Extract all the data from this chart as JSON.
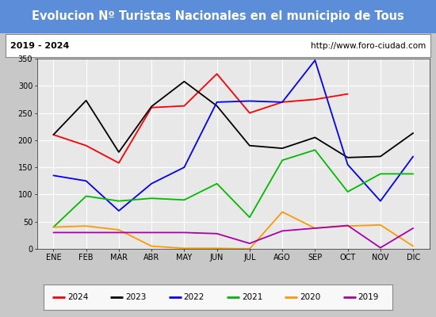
{
  "title": "Evolucion Nº Turistas Nacionales en el municipio de Tous",
  "subtitle_left": "2019 - 2024",
  "subtitle_right": "http://www.foro-ciudad.com",
  "x_labels": [
    "ENE",
    "FEB",
    "MAR",
    "ABR",
    "MAY",
    "JUN",
    "JUL",
    "AGO",
    "SEP",
    "OCT",
    "NOV",
    "DIC"
  ],
  "ylim": [
    0,
    350
  ],
  "yticks": [
    0,
    50,
    100,
    150,
    200,
    250,
    300,
    350
  ],
  "series": {
    "2024": [
      210,
      190,
      158,
      260,
      263,
      322,
      250,
      270,
      275,
      285,
      null,
      null
    ],
    "2023": [
      210,
      273,
      178,
      262,
      308,
      263,
      190,
      185,
      205,
      168,
      170,
      213
    ],
    "2022": [
      135,
      125,
      70,
      120,
      150,
      270,
      272,
      270,
      347,
      155,
      88,
      170
    ],
    "2021": [
      40,
      97,
      88,
      93,
      90,
      120,
      58,
      163,
      182,
      105,
      138,
      138
    ],
    "2020": [
      40,
      42,
      35,
      5,
      1,
      1,
      0,
      68,
      38,
      42,
      44,
      5
    ],
    "2019": [
      30,
      30,
      30,
      30,
      30,
      28,
      10,
      33,
      38,
      43,
      2,
      38
    ]
  },
  "colors": {
    "2024": "#ff0000",
    "2023": "#000000",
    "2022": "#0000ff",
    "2021": "#00bb00",
    "2020": "#ff9900",
    "2019": "#aa00aa"
  },
  "title_bg": "#5b8dd9",
  "title_color": "#ffffff",
  "title_fontsize": 10.5,
  "subtitle_bg": "#ffffff",
  "plot_bg": "#e8e8e8",
  "fig_bg": "#c8c8c8",
  "border_color": "#888888",
  "grid_color": "#ffffff",
  "legend_bg": "#f8f8f8",
  "linewidth": 1.3
}
